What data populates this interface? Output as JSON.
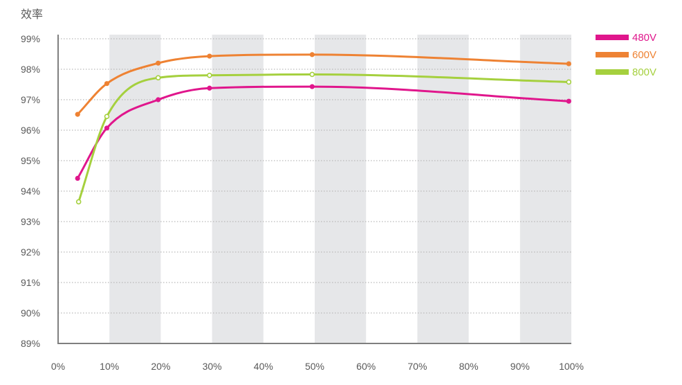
{
  "chart_data": {
    "type": "line",
    "title": "",
    "ylabel": "效率",
    "xlabel": "",
    "xlim": [
      0,
      100
    ],
    "ylim": [
      89,
      99
    ],
    "x_ticks": [
      "0%",
      "10%",
      "20%",
      "30%",
      "40%",
      "50%",
      "60%",
      "70%",
      "80%",
      "90%",
      "100%"
    ],
    "y_ticks": [
      "89%",
      "90%",
      "91%",
      "92%",
      "93%",
      "94%",
      "95%",
      "96%",
      "97%",
      "98%",
      "99%"
    ],
    "grid": "horizontal dotted lines, alternating grey vertical bands",
    "legend_position": "top-right",
    "series": [
      {
        "name": "480V",
        "color": "#e0168c",
        "marker": "filled",
        "points": [
          [
            3.8,
            94.42
          ],
          [
            9.5,
            96.07
          ],
          [
            19.5,
            97.0
          ],
          [
            29.5,
            97.38
          ],
          [
            49.5,
            97.43
          ],
          [
            99.5,
            96.95
          ]
        ]
      },
      {
        "name": "600V",
        "color": "#ee8233",
        "marker": "filled",
        "points": [
          [
            3.8,
            96.52
          ],
          [
            9.5,
            97.53
          ],
          [
            19.5,
            98.2
          ],
          [
            29.5,
            98.43
          ],
          [
            49.5,
            98.48
          ],
          [
            99.5,
            98.18
          ]
        ]
      },
      {
        "name": "800V",
        "color": "#a5d03e",
        "marker": "open",
        "points": [
          [
            4.0,
            93.65
          ],
          [
            9.5,
            96.45
          ],
          [
            19.5,
            97.72
          ],
          [
            29.5,
            97.8
          ],
          [
            49.5,
            97.83
          ],
          [
            99.5,
            97.58
          ]
        ]
      }
    ]
  }
}
